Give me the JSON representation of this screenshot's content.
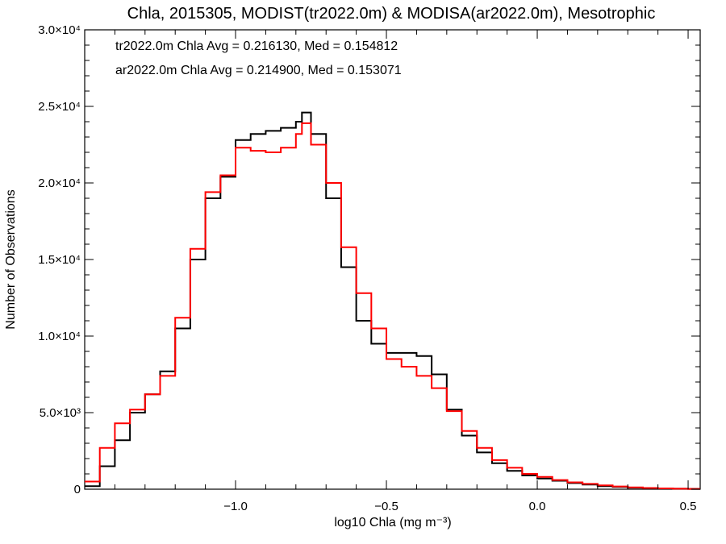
{
  "chart_data": {
    "type": "line",
    "title": "Chla, 2015305, MODIST(tr2022.0m) & MODISA(ar2022.0m), Mesotrophic",
    "xlabel": "log10 Chla (mg m⁻³)",
    "ylabel": "Number of Observations",
    "xlim": [
      -1.5,
      0.54
    ],
    "ylim": [
      0,
      30000
    ],
    "x_ticks": [
      -1.0,
      -0.5,
      0.0,
      0.5
    ],
    "x_tick_labels": [
      "−1.0",
      "−0.5",
      "0.0",
      "0.5"
    ],
    "y_ticks": [
      0,
      5000,
      10000,
      15000,
      20000,
      25000,
      30000
    ],
    "y_tick_labels": [
      "0",
      "5.0×10³",
      "1.0×10⁴",
      "1.5×10⁴",
      "2.0×10⁴",
      "2.5×10⁴",
      "3.0×10⁴"
    ],
    "grid": false,
    "step_style": true,
    "annotations": [
      {
        "text": "tr2022.0m Chla Avg = 0.216130, Med = 0.154812",
        "color": "#000000"
      },
      {
        "text": "ar2022.0m Chla Avg = 0.214900, Med = 0.153071",
        "color": "#ff0000"
      }
    ],
    "series": [
      {
        "color": "#000000",
        "x": [
          -1.5,
          -1.45,
          -1.4,
          -1.35,
          -1.3,
          -1.25,
          -1.2,
          -1.15,
          -1.1,
          -1.05,
          -1.0,
          -0.95,
          -0.9,
          -0.85,
          -0.8,
          -0.78,
          -0.75,
          -0.7,
          -0.65,
          -0.6,
          -0.55,
          -0.5,
          -0.45,
          -0.4,
          -0.35,
          -0.3,
          -0.25,
          -0.2,
          -0.15,
          -0.1,
          -0.05,
          0.0,
          0.05,
          0.1,
          0.15,
          0.2,
          0.25,
          0.3,
          0.35,
          0.4,
          0.45,
          0.5,
          0.54
        ],
        "values": [
          200,
          1500,
          3200,
          5000,
          6200,
          7700,
          10500,
          15000,
          19000,
          20400,
          22800,
          23200,
          23400,
          23600,
          24000,
          24600,
          23200,
          19000,
          14500,
          11000,
          9500,
          8900,
          8900,
          8700,
          7500,
          5200,
          3500,
          2400,
          1700,
          1200,
          900,
          700,
          550,
          400,
          300,
          200,
          150,
          100,
          80,
          50,
          30,
          20,
          20
        ]
      },
      {
        "color": "#ff0000",
        "x": [
          -1.5,
          -1.45,
          -1.4,
          -1.35,
          -1.3,
          -1.25,
          -1.2,
          -1.15,
          -1.1,
          -1.05,
          -1.0,
          -0.95,
          -0.9,
          -0.85,
          -0.8,
          -0.78,
          -0.75,
          -0.7,
          -0.65,
          -0.6,
          -0.55,
          -0.5,
          -0.45,
          -0.4,
          -0.35,
          -0.3,
          -0.25,
          -0.2,
          -0.15,
          -0.1,
          -0.05,
          0.0,
          0.05,
          0.1,
          0.15,
          0.2,
          0.25,
          0.3,
          0.35,
          0.4,
          0.45,
          0.5,
          0.54
        ],
        "values": [
          500,
          2700,
          4300,
          5200,
          6200,
          7400,
          11200,
          15700,
          19400,
          20500,
          22300,
          22100,
          22000,
          22300,
          23200,
          23900,
          22500,
          20000,
          15800,
          12800,
          10500,
          8500,
          8000,
          7400,
          6600,
          5100,
          3800,
          2700,
          1900,
          1400,
          1000,
          800,
          600,
          450,
          350,
          250,
          180,
          120,
          80,
          50,
          30,
          20,
          20
        ]
      }
    ]
  }
}
